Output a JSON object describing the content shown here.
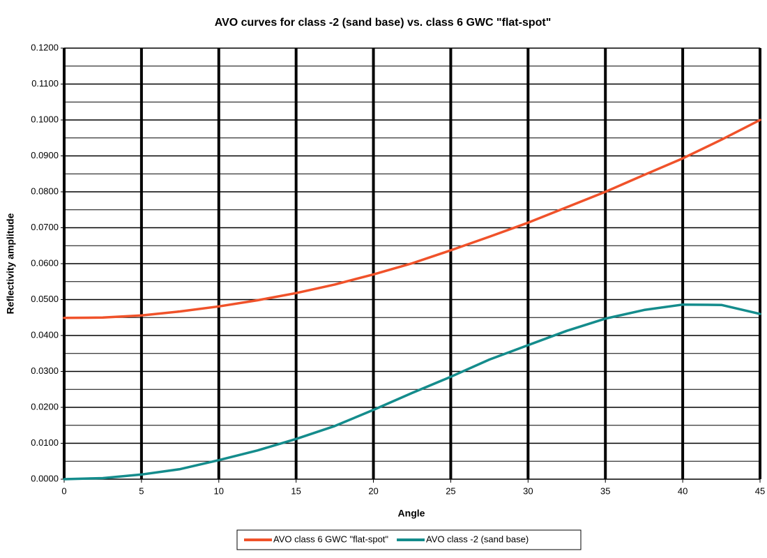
{
  "chart_data": {
    "type": "line",
    "title": "AVO curves for class -2 (sand base) vs. class 6 GWC \"flat-spot\"",
    "x_label": "Angle",
    "y_label": "Reflectivity amplitude",
    "x": [
      0,
      2.5,
      5,
      7.5,
      10,
      12.5,
      15,
      17.5,
      20,
      22.5,
      25,
      27.5,
      30,
      32.5,
      35,
      37.5,
      40,
      42.5,
      45
    ],
    "series": [
      {
        "name": "AVO class 6 GWC \"flat-spot\"",
        "color": "#f0522a",
        "values": [
          0.0449,
          0.045,
          0.0456,
          0.0467,
          0.0481,
          0.0498,
          0.0518,
          0.0542,
          0.057,
          0.0601,
          0.0637,
          0.0675,
          0.0714,
          0.0757,
          0.08,
          0.0847,
          0.0893,
          0.0945,
          0.1
        ]
      },
      {
        "name": "AVO class -2 (sand base)",
        "color": "#148c8c",
        "values": [
          0.0,
          0.0003,
          0.0013,
          0.0028,
          0.0053,
          0.008,
          0.0112,
          0.0148,
          0.0193,
          0.024,
          0.0285,
          0.0333,
          0.0373,
          0.0413,
          0.0447,
          0.0471,
          0.0486,
          0.0485,
          0.046
        ]
      }
    ],
    "xlim": [
      0,
      45
    ],
    "xticks": [
      0,
      5,
      10,
      15,
      20,
      25,
      30,
      35,
      40,
      45
    ],
    "ylim": [
      0,
      0.12
    ],
    "yticks": [
      {
        "value": 0,
        "label": "0.0000"
      },
      {
        "value": 0.01,
        "label": "0.0100"
      },
      {
        "value": 0.02,
        "label": "0.0200"
      },
      {
        "value": 0.03,
        "label": "0.0300"
      },
      {
        "value": 0.04,
        "label": "0.0400"
      },
      {
        "value": 0.05,
        "label": "0.0500"
      },
      {
        "value": 0.06,
        "label": "0.0600"
      },
      {
        "value": 0.07,
        "label": "0.0700"
      },
      {
        "value": 0.08,
        "label": "0.0800"
      },
      {
        "value": 0.09,
        "label": "0.0900"
      },
      {
        "value": 0.1,
        "label": "0.1000"
      },
      {
        "value": 0.11,
        "label": "0.1100"
      },
      {
        "value": 0.12,
        "label": "0.1200"
      }
    ],
    "y_minor_ticks": [
      0.005,
      0.015,
      0.025,
      0.035,
      0.045,
      0.055,
      0.065,
      0.075,
      0.085,
      0.095,
      0.105,
      0.115
    ],
    "grid": true,
    "legend": "bottom"
  }
}
